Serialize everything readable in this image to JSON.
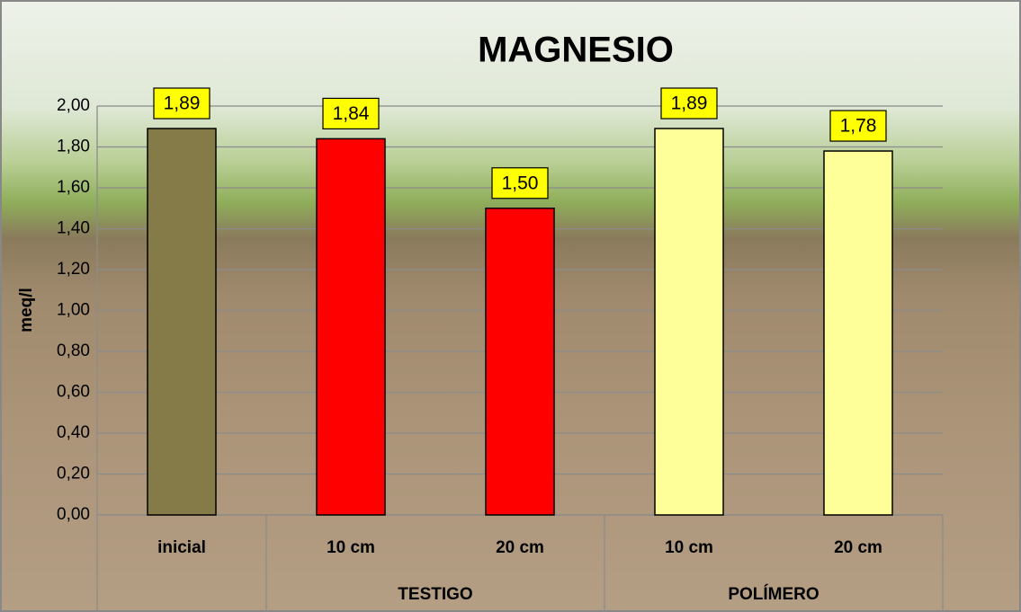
{
  "chart_data": {
    "type": "bar",
    "title": "MAGNESIO",
    "y_label": "meq/l",
    "categories": [
      "inicial",
      "10 cm",
      "20 cm",
      "10 cm",
      "20 cm"
    ],
    "groups": [
      null,
      "TESTIGO",
      "TESTIGO",
      "POLÍMERO",
      "POLÍMERO"
    ],
    "values": [
      1.89,
      1.84,
      1.5,
      1.89,
      1.78
    ],
    "value_labels": [
      "1,89",
      "1,84",
      "1,50",
      "1,89",
      "1,78"
    ],
    "colors": [
      "#857b49",
      "#ff0000",
      "#ff0000",
      "#ffff99",
      "#ffff99"
    ],
    "ylim": [
      0,
      2
    ],
    "yticks": [
      {
        "value": 0,
        "label": "0,00"
      },
      {
        "value": 0.2,
        "label": "0,20"
      },
      {
        "value": 0.4,
        "label": "0,40"
      },
      {
        "value": 0.6,
        "label": "0,60"
      },
      {
        "value": 0.8,
        "label": "0,80"
      },
      {
        "value": 1,
        "label": "1,00"
      },
      {
        "value": 1.2,
        "label": "1,20"
      },
      {
        "value": 1.4,
        "label": "1,40"
      },
      {
        "value": 1.6,
        "label": "1,60"
      },
      {
        "value": 1.8,
        "label": "1,80"
      },
      {
        "value": 2,
        "label": "2,00"
      }
    ],
    "grid": true
  }
}
